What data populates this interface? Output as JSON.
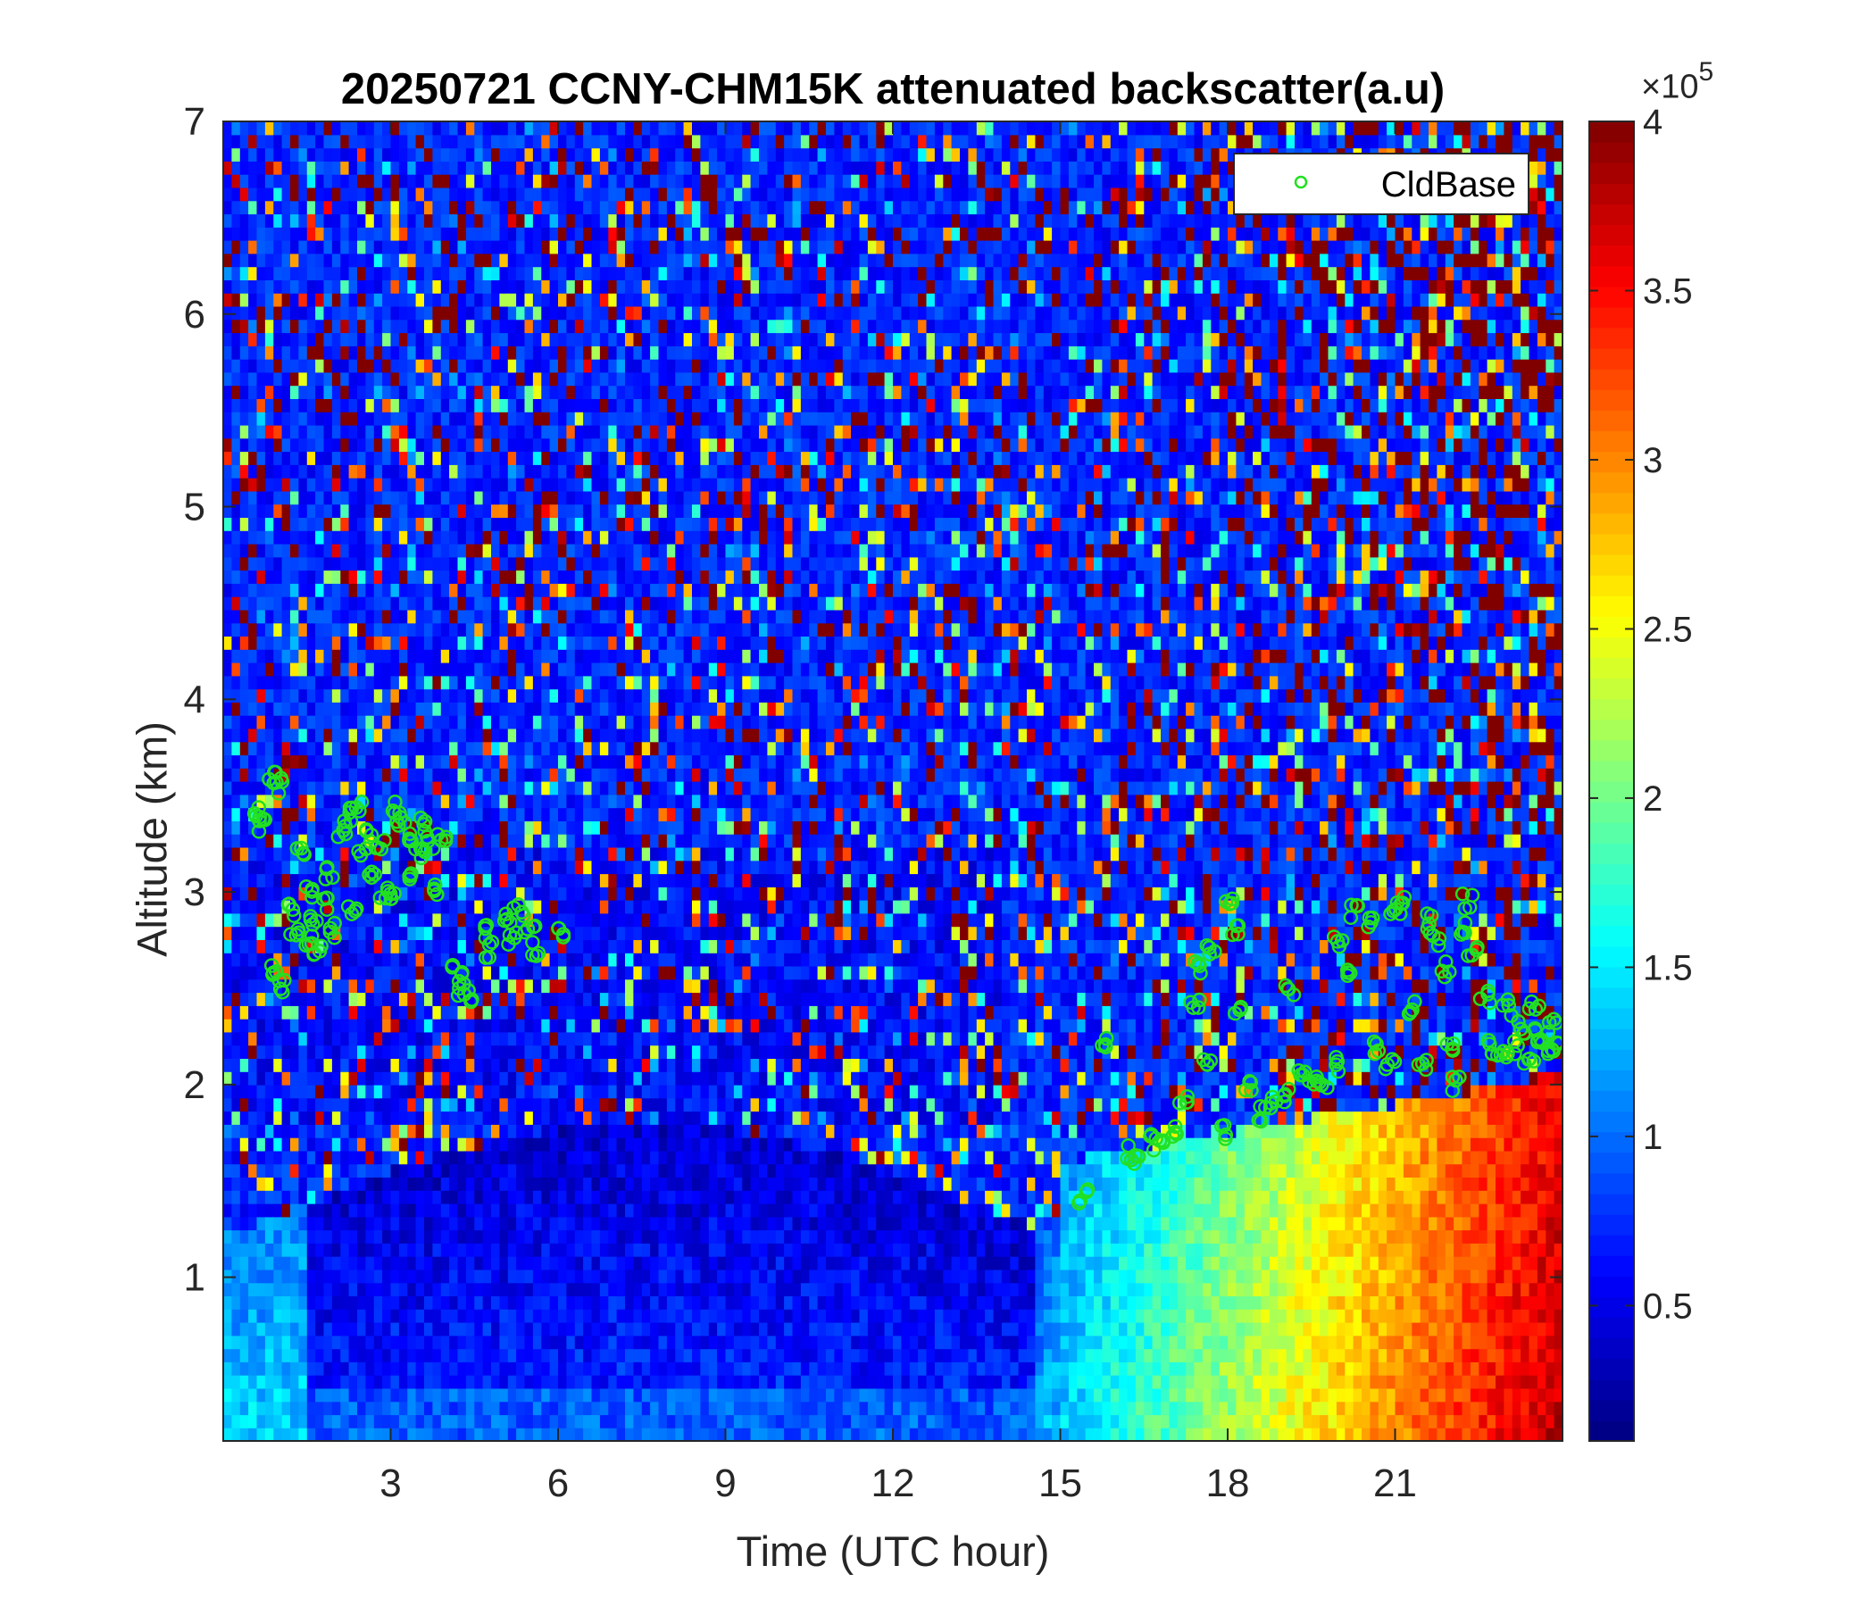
{
  "chart_data": {
    "type": "heatmap",
    "title": "20250721 CCNY-CHM15K attenuated backscatter(a.u)",
    "xlabel": "Time (UTC hour)",
    "ylabel": "Altitude (km)",
    "xlim": [
      0,
      24
    ],
    "ylim": [
      0.15,
      7
    ],
    "xticks": [
      3,
      6,
      9,
      12,
      15,
      18,
      21
    ],
    "yticks": [
      1,
      2,
      3,
      4,
      5,
      6,
      7
    ],
    "colorbar": {
      "colormap": "jet",
      "clim": [
        0.1,
        4
      ],
      "ticks": [
        0.5,
        1,
        1.5,
        2,
        2.5,
        3,
        3.5,
        4
      ],
      "multiplier_base": "×10",
      "multiplier_exponent": "5"
    },
    "legend": {
      "location": "top-right",
      "entries": [
        "CldBase"
      ]
    },
    "cloud_base_series": {
      "name": "CldBase",
      "marker": "circle",
      "color": "#22e022",
      "points": [
        [
          0.6,
          3.4
        ],
        [
          0.7,
          3.35
        ],
        [
          0.9,
          3.6
        ],
        [
          1.0,
          3.55
        ],
        [
          0.9,
          2.6
        ],
        [
          1.0,
          2.5
        ],
        [
          1.2,
          2.9
        ],
        [
          1.3,
          2.8
        ],
        [
          1.4,
          3.2
        ],
        [
          1.5,
          3.0
        ],
        [
          1.5,
          2.75
        ],
        [
          1.6,
          2.85
        ],
        [
          1.7,
          2.7
        ],
        [
          1.8,
          2.95
        ],
        [
          1.9,
          3.1
        ],
        [
          2.0,
          2.8
        ],
        [
          2.1,
          3.3
        ],
        [
          2.2,
          3.4
        ],
        [
          2.3,
          2.9
        ],
        [
          2.4,
          3.45
        ],
        [
          2.5,
          3.2
        ],
        [
          2.6,
          3.3
        ],
        [
          2.7,
          3.1
        ],
        [
          2.8,
          3.25
        ],
        [
          2.9,
          3.0
        ],
        [
          3.0,
          3.0
        ],
        [
          3.1,
          3.45
        ],
        [
          3.2,
          3.35
        ],
        [
          3.3,
          3.3
        ],
        [
          3.4,
          3.1
        ],
        [
          3.5,
          3.2
        ],
        [
          3.6,
          3.35
        ],
        [
          3.7,
          3.25
        ],
        [
          3.8,
          3.0
        ],
        [
          3.9,
          3.3
        ],
        [
          4.2,
          2.6
        ],
        [
          4.3,
          2.5
        ],
        [
          4.4,
          2.45
        ],
        [
          4.7,
          2.8
        ],
        [
          4.8,
          2.7
        ],
        [
          5.1,
          2.85
        ],
        [
          5.2,
          2.75
        ],
        [
          5.3,
          2.9
        ],
        [
          5.5,
          2.8
        ],
        [
          5.6,
          2.7
        ],
        [
          6.1,
          2.8
        ],
        [
          15.4,
          1.42
        ],
        [
          15.8,
          2.2
        ],
        [
          16.2,
          1.65
        ],
        [
          16.4,
          1.6
        ],
        [
          16.6,
          1.7
        ],
        [
          16.8,
          1.72
        ],
        [
          17.0,
          1.75
        ],
        [
          17.2,
          1.9
        ],
        [
          17.4,
          2.4
        ],
        [
          17.5,
          2.6
        ],
        [
          17.6,
          2.1
        ],
        [
          17.7,
          2.7
        ],
        [
          17.9,
          1.75
        ],
        [
          18.0,
          2.95
        ],
        [
          18.1,
          2.8
        ],
        [
          18.2,
          2.4
        ],
        [
          18.4,
          2.0
        ],
        [
          18.6,
          1.85
        ],
        [
          18.8,
          1.9
        ],
        [
          19.0,
          1.95
        ],
        [
          19.1,
          2.5
        ],
        [
          19.3,
          2.05
        ],
        [
          19.5,
          2.0
        ],
        [
          19.7,
          2.0
        ],
        [
          19.9,
          2.1
        ],
        [
          20.0,
          2.75
        ],
        [
          20.2,
          2.6
        ],
        [
          20.3,
          2.9
        ],
        [
          20.5,
          2.85
        ],
        [
          20.7,
          2.2
        ],
        [
          20.9,
          2.1
        ],
        [
          21.0,
          2.9
        ],
        [
          21.1,
          2.95
        ],
        [
          21.3,
          2.4
        ],
        [
          21.5,
          2.1
        ],
        [
          21.6,
          2.85
        ],
        [
          21.7,
          2.75
        ],
        [
          21.9,
          2.6
        ],
        [
          22.0,
          2.2
        ],
        [
          22.1,
          2.0
        ],
        [
          22.2,
          2.8
        ],
        [
          22.3,
          2.95
        ],
        [
          22.4,
          2.7
        ],
        [
          22.6,
          2.45
        ],
        [
          22.7,
          2.2
        ],
        [
          22.9,
          2.15
        ],
        [
          23.0,
          2.4
        ],
        [
          23.1,
          2.2
        ],
        [
          23.3,
          2.3
        ],
        [
          23.4,
          2.15
        ],
        [
          23.5,
          2.4
        ],
        [
          23.6,
          2.25
        ],
        [
          23.7,
          2.2
        ],
        [
          23.8,
          2.3
        ],
        [
          23.9,
          2.2
        ]
      ]
    }
  }
}
